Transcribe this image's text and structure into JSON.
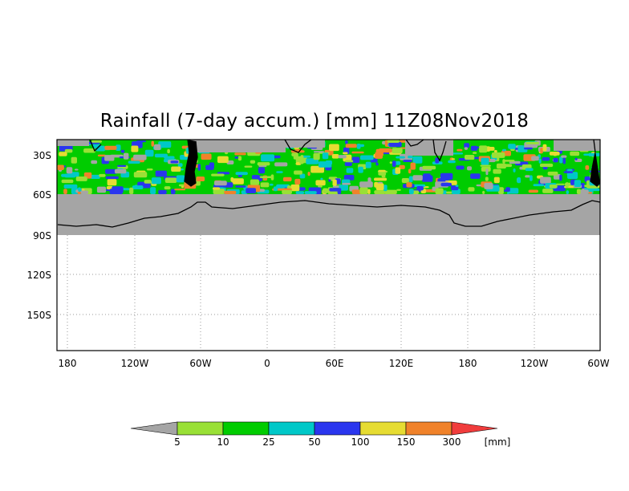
{
  "title": "Rainfall (7-day accum.) [mm] 11Z08Nov2018",
  "lat_labels": [
    "30S",
    "60S",
    "90S",
    "120S",
    "150S"
  ],
  "lon_labels": [
    "180",
    "120W",
    "60W",
    "0",
    "60E",
    "120E",
    "180",
    "120W",
    "60W"
  ],
  "colorbar": {
    "bins": [
      {
        "color": "#a5a5a5"
      },
      {
        "color": "#99e036"
      },
      {
        "color": "#00cc00"
      },
      {
        "color": "#00c8c8"
      },
      {
        "color": "#2a36ee"
      },
      {
        "color": "#e6dc32"
      },
      {
        "color": "#f0822a"
      },
      {
        "color": "#f03c3c"
      }
    ],
    "labels": [
      "5",
      "10",
      "25",
      "50",
      "100",
      "150",
      "300"
    ],
    "unit": "[mm]"
  },
  "colors": {
    "no_data": "#a5a5a5",
    "land_line": "#000000",
    "grid_line": "#999999"
  }
}
